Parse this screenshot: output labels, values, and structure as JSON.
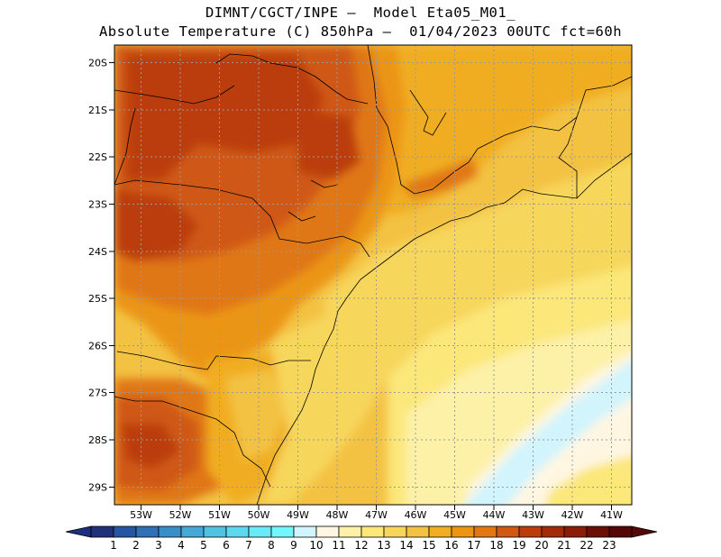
{
  "title_line1": "DIMNT/CGCT/INPE –  Model Eta05_M01_",
  "title_line2": "Absolute Temperature (C) 850hPa –  01/04/2023 00UTC fct=60h",
  "lat_labels": [
    "20S",
    "21S",
    "22S",
    "23S",
    "24S",
    "25S",
    "26S",
    "27S",
    "28S",
    "29S"
  ],
  "lon_labels": [
    "53W",
    "52W",
    "51W",
    "50W",
    "49W",
    "48W",
    "47W",
    "46W",
    "45W",
    "44W",
    "43W",
    "42W",
    "41W"
  ],
  "colorbar": {
    "labels": [
      "1",
      "2",
      "3",
      "4",
      "5",
      "6",
      "7",
      "8",
      "9",
      "10",
      "11",
      "12",
      "13",
      "14",
      "15",
      "16",
      "17",
      "18",
      "19",
      "20",
      "21",
      "22",
      "23"
    ],
    "colors": [
      "#22307a",
      "#2556a4",
      "#2f70b4",
      "#3a8ec7",
      "#46a8d6",
      "#51c2e2",
      "#5dd8ee",
      "#6ae9f6",
      "#72f5fb",
      "#d2f4fc",
      "#fff6e2",
      "#fdf1a8",
      "#fbe77a",
      "#f7d65b",
      "#f3c243",
      "#f1ad23",
      "#eb9512",
      "#e07714",
      "#cf5812",
      "#bb3d0c",
      "#a22c09",
      "#8a1d08",
      "#6c1006",
      "#560707"
    ],
    "left_arrow_color": "#1b2f7a",
    "right_arrow_color": "#560707"
  },
  "temperature_field": {
    "unit": "C",
    "level": "850hPa",
    "summary": "Warmest (19-21C) over the interior southwest/northwest, cooling toward the southeast ocean (11-13C) with a cold tongue near 27-29S, 41-44W"
  }
}
